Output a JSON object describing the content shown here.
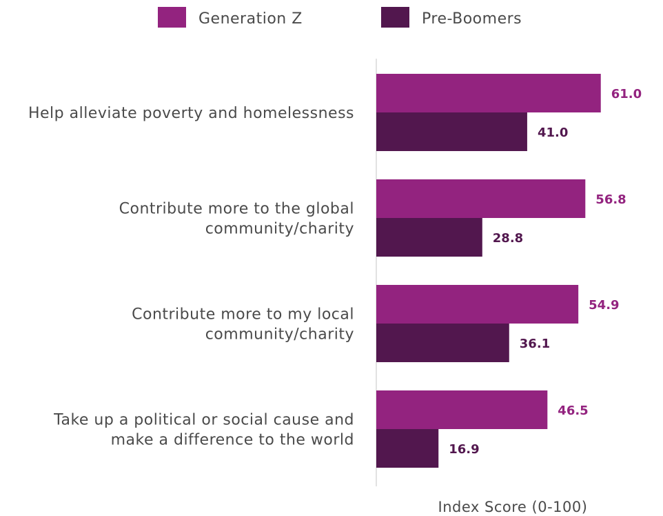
{
  "chart_data": {
    "type": "bar",
    "orientation": "horizontal",
    "title": "",
    "xlabel": "Index Score (0-100)",
    "ylabel": "",
    "xlim": [
      0,
      100
    ],
    "grid": false,
    "legend_position": "top",
    "categories": [
      [
        "Help alleviate poverty and homelessness"
      ],
      [
        "Contribute more to the global",
        "community/charity"
      ],
      [
        "Contribute more to my local",
        "community/charity"
      ],
      [
        "Take up a political or social cause and",
        "make a difference to the world"
      ]
    ],
    "series": [
      {
        "name": "Generation Z",
        "color": "#93237f",
        "values": [
          61.0,
          56.8,
          54.9,
          46.5
        ]
      },
      {
        "name": "Pre-Boomers",
        "color": "#52174e",
        "values": [
          41.0,
          28.8,
          36.1,
          16.9
        ]
      }
    ]
  }
}
